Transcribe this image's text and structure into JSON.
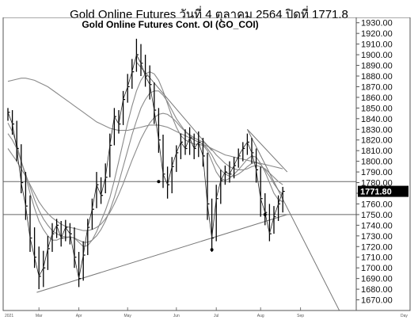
{
  "page": {
    "title": "Gold Online Futures วันที่ 4 ตุลาคม 2564 ปิดที่ 1771.8"
  },
  "chart_data": {
    "type": "line",
    "title": "Gold Online Futures Cont. OI (GO_COI)",
    "ylim": [
      1660,
      1935
    ],
    "y_ticks": [
      1930,
      1920,
      1910,
      1900,
      1890,
      1880,
      1870,
      1860,
      1850,
      1840,
      1830,
      1820,
      1810,
      1800,
      1790,
      1780,
      1770,
      1760,
      1750,
      1740,
      1730,
      1720,
      1710,
      1700,
      1690,
      1680,
      1670
    ],
    "last_price_label": "1771.80",
    "last_price": 1771.8,
    "x_labels": [
      "Mar",
      "Apr",
      "May",
      "Jun",
      "Jul",
      "Aug",
      "Sep"
    ],
    "x_left_label": "2021",
    "x_right_label": "Day",
    "grid": false,
    "price_series": [
      {
        "close": 1846,
        "high": 1850,
        "low": 1838
      },
      {
        "close": 1835,
        "high": 1848,
        "low": 1825
      },
      {
        "close": 1812,
        "high": 1838,
        "low": 1800
      },
      {
        "close": 1780,
        "high": 1816,
        "low": 1770
      },
      {
        "close": 1758,
        "high": 1790,
        "low": 1745
      },
      {
        "close": 1728,
        "high": 1768,
        "low": 1715
      },
      {
        "close": 1710,
        "high": 1738,
        "low": 1700
      },
      {
        "close": 1692,
        "high": 1720,
        "low": 1680
      },
      {
        "close": 1700,
        "high": 1716,
        "low": 1682
      },
      {
        "close": 1718,
        "high": 1730,
        "low": 1698
      },
      {
        "close": 1732,
        "high": 1742,
        "low": 1715
      },
      {
        "close": 1740,
        "high": 1746,
        "low": 1728
      },
      {
        "close": 1728,
        "high": 1744,
        "low": 1720
      },
      {
        "close": 1738,
        "high": 1745,
        "low": 1725
      },
      {
        "close": 1732,
        "high": 1742,
        "low": 1722
      },
      {
        "close": 1710,
        "high": 1738,
        "low": 1700
      },
      {
        "close": 1690,
        "high": 1715,
        "low": 1682
      },
      {
        "close": 1712,
        "high": 1725,
        "low": 1688
      },
      {
        "close": 1738,
        "high": 1746,
        "low": 1712
      },
      {
        "close": 1755,
        "high": 1765,
        "low": 1736
      },
      {
        "close": 1778,
        "high": 1790,
        "low": 1756
      },
      {
        "close": 1768,
        "high": 1785,
        "low": 1760
      },
      {
        "close": 1785,
        "high": 1798,
        "low": 1770
      },
      {
        "close": 1815,
        "high": 1826,
        "low": 1785
      },
      {
        "close": 1842,
        "high": 1850,
        "low": 1815
      },
      {
        "close": 1835,
        "high": 1848,
        "low": 1826
      },
      {
        "close": 1858,
        "high": 1866,
        "low": 1834
      },
      {
        "close": 1870,
        "high": 1882,
        "low": 1855
      },
      {
        "close": 1884,
        "high": 1896,
        "low": 1868
      },
      {
        "close": 1900,
        "high": 1915,
        "low": 1884
      },
      {
        "close": 1892,
        "high": 1910,
        "low": 1880
      },
      {
        "close": 1880,
        "high": 1900,
        "low": 1870
      },
      {
        "close": 1872,
        "high": 1890,
        "low": 1858
      },
      {
        "close": 1848,
        "high": 1874,
        "low": 1835
      },
      {
        "close": 1820,
        "high": 1850,
        "low": 1808
      },
      {
        "close": 1788,
        "high": 1825,
        "low": 1775
      },
      {
        "close": 1778,
        "high": 1795,
        "low": 1765
      },
      {
        "close": 1795,
        "high": 1804,
        "low": 1770
      },
      {
        "close": 1808,
        "high": 1815,
        "low": 1790
      },
      {
        "close": 1818,
        "high": 1826,
        "low": 1802
      },
      {
        "close": 1812,
        "high": 1830,
        "low": 1806
      },
      {
        "close": 1822,
        "high": 1832,
        "low": 1806
      },
      {
        "close": 1812,
        "high": 1826,
        "low": 1802
      },
      {
        "close": 1818,
        "high": 1828,
        "low": 1804
      },
      {
        "close": 1805,
        "high": 1822,
        "low": 1795
      },
      {
        "close": 1760,
        "high": 1808,
        "low": 1745
      },
      {
        "close": 1728,
        "high": 1765,
        "low": 1715
      },
      {
        "close": 1765,
        "high": 1778,
        "low": 1725
      },
      {
        "close": 1782,
        "high": 1792,
        "low": 1760
      },
      {
        "close": 1790,
        "high": 1796,
        "low": 1778
      },
      {
        "close": 1788,
        "high": 1800,
        "low": 1780
      },
      {
        "close": 1796,
        "high": 1804,
        "low": 1784
      },
      {
        "close": 1805,
        "high": 1812,
        "low": 1794
      },
      {
        "close": 1812,
        "high": 1818,
        "low": 1800
      },
      {
        "close": 1818,
        "high": 1826,
        "low": 1806
      },
      {
        "close": 1808,
        "high": 1822,
        "low": 1798
      },
      {
        "close": 1792,
        "high": 1812,
        "low": 1780
      },
      {
        "close": 1765,
        "high": 1795,
        "low": 1748
      },
      {
        "close": 1752,
        "high": 1770,
        "low": 1740
      },
      {
        "close": 1732,
        "high": 1760,
        "low": 1725
      },
      {
        "close": 1748,
        "high": 1758,
        "low": 1732
      },
      {
        "close": 1760,
        "high": 1768,
        "low": 1744
      },
      {
        "close": 1771.8,
        "high": 1776,
        "low": 1752
      }
    ],
    "overlay_lines": [
      {
        "values": [
          1836,
          1828,
          1816,
          1800,
          1786,
          1770,
          1756,
          1744,
          1736,
          1730,
          1726,
          1726,
          1728,
          1728,
          1729,
          1728,
          1724,
          1720,
          1721,
          1726,
          1734,
          1744,
          1754,
          1766,
          1782,
          1800,
          1818,
          1836,
          1852,
          1866,
          1876,
          1882,
          1884,
          1882,
          1876,
          1866,
          1854,
          1842,
          1832,
          1824,
          1820,
          1818,
          1816,
          1816,
          1815,
          1810,
          1800,
          1790,
          1784,
          1782,
          1784,
          1788,
          1792,
          1797,
          1802,
          1805,
          1804,
          1798,
          1790,
          1780,
          1770,
          1764,
          1762
        ]
      },
      {
        "values": [
          1826,
          1820,
          1812,
          1800,
          1788,
          1776,
          1764,
          1754,
          1746,
          1740,
          1735,
          1732,
          1730,
          1729,
          1729,
          1728,
          1726,
          1724,
          1724,
          1726,
          1730,
          1736,
          1744,
          1754,
          1766,
          1780,
          1795,
          1810,
          1825,
          1838,
          1850,
          1858,
          1864,
          1866,
          1866,
          1862,
          1856,
          1848,
          1840,
          1834,
          1828,
          1824,
          1820,
          1818,
          1816,
          1812,
          1806,
          1798,
          1792,
          1788,
          1786,
          1786,
          1788,
          1791,
          1795,
          1798,
          1799,
          1797,
          1792,
          1786,
          1779,
          1773,
          1769
        ]
      },
      {
        "values": [
          1812,
          1806,
          1800,
          1793,
          1786,
          1778,
          1770,
          1762,
          1756,
          1751,
          1747,
          1744,
          1741,
          1739,
          1738,
          1737,
          1736,
          1735,
          1735,
          1736,
          1738,
          1741,
          1746,
          1752,
          1760,
          1769,
          1779,
          1790,
          1801,
          1811,
          1821,
          1829,
          1836,
          1841,
          1844,
          1845,
          1844,
          1841,
          1837,
          1832,
          1828,
          1825,
          1822,
          1820,
          1818,
          1815,
          1811,
          1806,
          1802,
          1798,
          1795,
          1793,
          1792,
          1792,
          1793,
          1795,
          1796,
          1795,
          1793,
          1789,
          1785,
          1781,
          1778
        ]
      },
      {
        "values": [
          1875,
          1876,
          1877,
          1878,
          1878,
          1877,
          1876,
          1874,
          1872,
          1870,
          1867,
          1864,
          1861,
          1858,
          1855,
          1852,
          1849,
          1846,
          1843,
          1840,
          1837,
          1835,
          1833,
          1831,
          1830,
          1829,
          1829,
          1829,
          1830,
          1831,
          1832,
          1833,
          1834,
          1834,
          1834,
          1833,
          1832,
          1830,
          1828,
          1826,
          1824,
          1822,
          1820,
          1818,
          1816,
          1814,
          1812,
          1810,
          1808,
          1806,
          1805,
          1804,
          1803,
          1802,
          1801,
          1800,
          1799,
          1798,
          1797,
          1796,
          1795,
          1794,
          1793
        ]
      }
    ],
    "horizontal_levels": [
      1781,
      1750
    ],
    "trendlines": [
      {
        "from": [
          6.5,
          1677
        ],
        "to": [
          63,
          1750
        ]
      },
      {
        "from": [
          29,
          1893
        ],
        "to": [
          46,
          1810
        ]
      },
      {
        "from": [
          54,
          1830
        ],
        "to": [
          63,
          1790
        ]
      },
      {
        "from": [
          54,
          1830
        ],
        "to": [
          75,
          1658
        ]
      }
    ],
    "markers": [
      {
        "index": 34,
        "value": 1781
      },
      {
        "index": 46,
        "value": 1717
      },
      {
        "index": 58,
        "value": 1750
      }
    ]
  }
}
